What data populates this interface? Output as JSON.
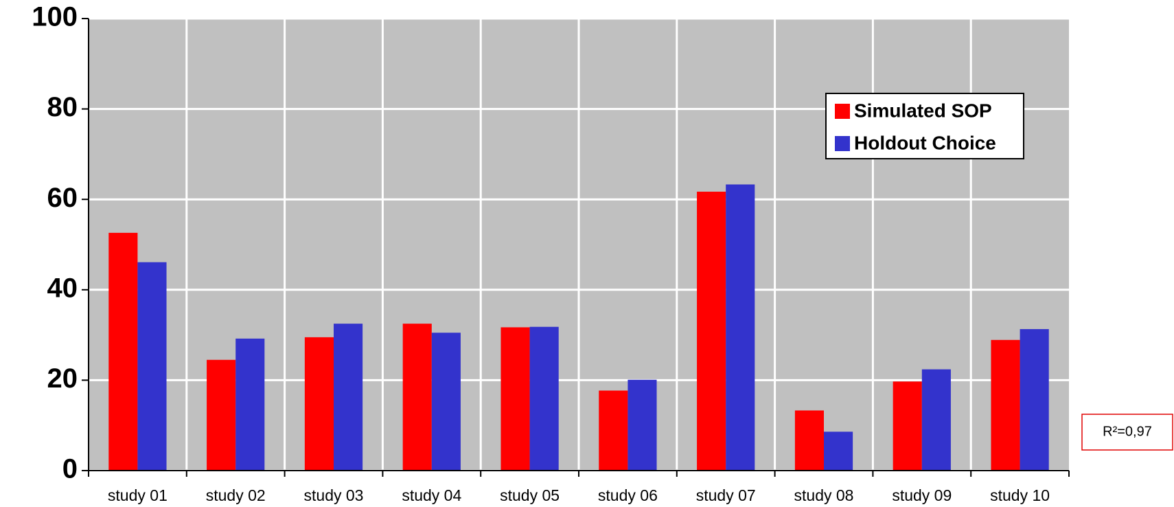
{
  "chart_data": {
    "type": "bar",
    "categories": [
      "study 01",
      "study 02",
      "study 03",
      "study 04",
      "study 05",
      "study 06",
      "study 07",
      "study 08",
      "study 09",
      "study 10"
    ],
    "series": [
      {
        "name": "Simulated SOP",
        "color": "#ff0000",
        "values": [
          52.6,
          24.5,
          29.5,
          32.5,
          31.7,
          17.7,
          61.7,
          13.3,
          19.7,
          28.9
        ]
      },
      {
        "name": "Holdout Choice",
        "color": "#3333cc",
        "values": [
          46.1,
          29.2,
          32.5,
          30.5,
          31.8,
          20.1,
          63.3,
          8.6,
          22.4,
          31.3
        ]
      }
    ],
    "ylim": [
      0,
      100
    ],
    "yticks": [
      0,
      20,
      40,
      60,
      80,
      100
    ],
    "grid": true,
    "annotation": "R²=0,97"
  }
}
